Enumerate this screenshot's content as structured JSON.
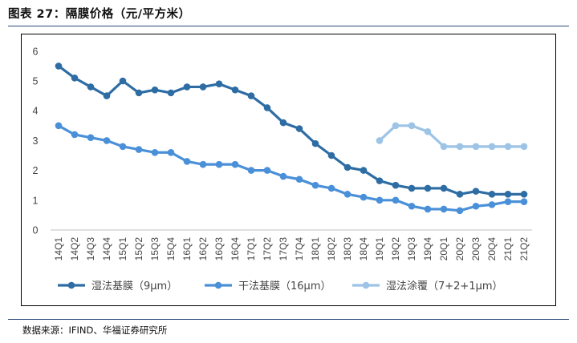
{
  "header": {
    "title": "图表 27：隔膜价格（元/平方米）",
    "source": "数据来源：IFIND、华福证券研究所"
  },
  "chart_data": {
    "type": "line",
    "title": "",
    "xlabel": "",
    "ylabel": "",
    "ylim": [
      0,
      6
    ],
    "yticks": [
      "0",
      "1",
      "2",
      "3",
      "4",
      "5",
      "6"
    ],
    "grid": false,
    "legend_position": "bottom",
    "categories": [
      "14Q1",
      "14Q2",
      "14Q3",
      "14Q4",
      "15Q1",
      "15Q2",
      "15Q3",
      "15Q4",
      "16Q1",
      "16Q2",
      "16Q3",
      "16Q4",
      "17Q1",
      "17Q2",
      "17Q3",
      "17Q4",
      "18Q1",
      "18Q2",
      "18Q3",
      "18Q4",
      "19Q1",
      "19Q2",
      "19Q3",
      "19Q4",
      "20Q1",
      "20Q2",
      "20Q3",
      "20Q4",
      "21Q1",
      "21Q2"
    ],
    "series": [
      {
        "name": "湿法基膜（9μm）",
        "color": "#2e6da4",
        "values": [
          5.5,
          5.1,
          4.8,
          4.5,
          5.0,
          4.6,
          4.7,
          4.6,
          4.8,
          4.8,
          4.9,
          4.7,
          4.5,
          4.1,
          3.6,
          3.4,
          2.9,
          2.5,
          2.1,
          2.0,
          1.65,
          1.5,
          1.4,
          1.4,
          1.4,
          1.2,
          1.3,
          1.2,
          1.2,
          1.2
        ]
      },
      {
        "name": "干法基膜（16μm）",
        "color": "#4a90d9",
        "values": [
          3.5,
          3.2,
          3.1,
          3.0,
          2.8,
          2.7,
          2.6,
          2.6,
          2.3,
          2.2,
          2.2,
          2.2,
          2.0,
          2.0,
          1.8,
          1.7,
          1.5,
          1.4,
          1.2,
          1.1,
          1.0,
          1.0,
          0.8,
          0.7,
          0.7,
          0.65,
          0.8,
          0.85,
          0.95,
          0.95
        ]
      },
      {
        "name": "湿法涂覆（7+2+1μm）",
        "color": "#9dc3e6",
        "values": [
          null,
          null,
          null,
          null,
          null,
          null,
          null,
          null,
          null,
          null,
          null,
          null,
          null,
          null,
          null,
          null,
          null,
          null,
          null,
          null,
          3.0,
          3.5,
          3.5,
          3.3,
          2.8,
          2.8,
          2.8,
          2.8,
          2.8,
          2.8
        ]
      }
    ]
  }
}
